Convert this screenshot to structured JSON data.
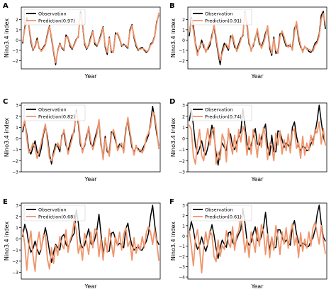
{
  "chart_data": [
    {
      "panel": "A",
      "type": "line",
      "xlabel": "Year",
      "ylabel": "Nino3.4 index",
      "yticks": [
        -2,
        -1,
        0,
        1,
        2
      ],
      "ylim": [
        -2.8,
        3.2
      ],
      "series": [
        {
          "name": "Observation",
          "color": "#000000",
          "values": [
            -0.3,
            1.2,
            2.2,
            1.4,
            -0.2,
            -1.0,
            -0.6,
            0.2,
            -0.8,
            -1.0,
            -0.7,
            -0.4,
            0.6,
            1.4,
            0.1,
            -1.2,
            -2.4,
            -1.0,
            -0.3,
            -0.8,
            -1.0,
            0.5,
            0.2,
            -0.6,
            -0.9,
            -0.4,
            0.1,
            0.3,
            2.8,
            1.5,
            -0.4,
            -0.9,
            -0.5,
            0.3,
            0.9,
            -0.4,
            -0.6,
            -0.1,
            0.6,
            1.3,
            -0.7,
            -1.4,
            0.3,
            -1.2,
            -1.1,
            0.7,
            0.6,
            0.1,
            -0.6,
            -0.4,
            -0.6,
            -0.8,
            1.0,
            1.5,
            0.2,
            -0.6,
            -1.0,
            -0.8,
            -0.7,
            -1.0,
            -1.2,
            -1.0,
            -0.4,
            -0.2,
            0.4,
            1.8,
            2.4
          ]
        },
        {
          "name": "Prediction(0.97)",
          "color": "#f0956c",
          "values": [
            -0.1,
            1.0,
            1.9,
            1.5,
            0.1,
            -0.9,
            -0.7,
            0.0,
            -0.7,
            -1.1,
            -0.8,
            -0.5,
            0.4,
            1.3,
            0.3,
            -1.0,
            -2.2,
            -1.1,
            -0.4,
            -0.7,
            -0.9,
            0.3,
            0.3,
            -0.4,
            -0.8,
            -0.5,
            0.0,
            0.4,
            2.5,
            1.7,
            -0.2,
            -0.8,
            -0.6,
            0.1,
            0.8,
            -0.2,
            -0.5,
            -0.2,
            0.4,
            1.2,
            -0.5,
            -1.2,
            0.2,
            -1.0,
            -1.2,
            0.5,
            0.7,
            0.2,
            -0.5,
            -0.5,
            -0.5,
            -0.7,
            0.8,
            1.4,
            0.4,
            -0.4,
            -0.9,
            -0.9,
            -0.8,
            -0.9,
            -1.1,
            -1.0,
            -0.5,
            -0.3,
            0.3,
            1.6,
            2.6
          ]
        }
      ]
    },
    {
      "panel": "B",
      "type": "line",
      "xlabel": "Year",
      "ylabel": "Nino3.4 index",
      "yticks": [
        -2,
        -1,
        0,
        1,
        2
      ],
      "ylim": [
        -2.8,
        3.2
      ],
      "series": [
        {
          "name": "Observation",
          "color": "#000000",
          "values": [
            0.4,
            2.2,
            1.4,
            -0.3,
            -1.2,
            -0.8,
            0.0,
            -0.7,
            -1.0,
            -0.9,
            -0.5,
            0.5,
            1.3,
            0.0,
            -1.3,
            -2.4,
            -1.0,
            -0.3,
            -0.6,
            -1.0,
            0.4,
            0.3,
            -0.7,
            -0.9,
            -0.4,
            0.2,
            0.4,
            2.8,
            1.4,
            -0.4,
            -0.9,
            -0.6,
            0.2,
            0.9,
            -0.4,
            -0.6,
            -0.1,
            0.7,
            1.2,
            -0.8,
            -1.5,
            0.3,
            -1.3,
            -1.1,
            0.6,
            0.7,
            0.0,
            -0.6,
            -0.5,
            -0.6,
            -0.8,
            1.1,
            1.6,
            0.1,
            -0.7,
            -1.0,
            -0.7,
            -0.8,
            -1.1,
            -1.2,
            -0.9,
            -0.3,
            -0.1,
            0.6,
            2.4,
            2.8,
            1.1
          ]
        },
        {
          "name": "Prediction(0.91)",
          "color": "#f0956c",
          "values": [
            0.8,
            2.0,
            1.0,
            -0.5,
            -1.5,
            -0.6,
            -0.3,
            -0.4,
            -1.2,
            -0.7,
            -0.2,
            0.2,
            1.5,
            0.3,
            -1.0,
            -2.0,
            -1.3,
            -0.6,
            -0.4,
            -0.8,
            0.1,
            0.5,
            -0.4,
            -1.1,
            -0.6,
            0.0,
            0.6,
            2.6,
            1.7,
            -0.1,
            -1.1,
            -0.4,
            0.0,
            1.1,
            -0.1,
            -0.8,
            -0.3,
            0.4,
            1.4,
            -0.5,
            -1.3,
            0.1,
            -1.0,
            -1.3,
            0.3,
            0.9,
            0.3,
            -0.4,
            -0.7,
            -0.4,
            -1.0,
            0.7,
            1.8,
            0.4,
            -0.5,
            -1.2,
            -0.6,
            -0.9,
            -0.9,
            -1.0,
            -1.1,
            -0.5,
            -0.3,
            0.4,
            2.0,
            2.6,
            1.6
          ]
        }
      ]
    },
    {
      "panel": "C",
      "type": "line",
      "xlabel": "Year",
      "ylabel": "Nino3.4 index",
      "yticks": [
        -3,
        -2,
        -1,
        0,
        1,
        2,
        3
      ],
      "ylim": [
        -3.0,
        3.2
      ],
      "series": [
        {
          "name": "Observation",
          "color": "#000000",
          "values": [
            0.6,
            1.5,
            0.4,
            -1.0,
            -1.4,
            -0.8,
            -0.2,
            -1.2,
            -1.6,
            -0.9,
            0.3,
            1.1,
            0.2,
            -1.4,
            -2.3,
            -1.2,
            -0.5,
            -0.7,
            -1.2,
            0.3,
            0.5,
            -0.6,
            -1.1,
            -0.4,
            0.3,
            0.6,
            2.6,
            1.3,
            -0.6,
            -1.0,
            -0.7,
            0.3,
            0.8,
            -0.5,
            -0.7,
            0.0,
            0.7,
            1.5,
            -0.6,
            -1.6,
            0.2,
            -1.2,
            -1.3,
            0.6,
            0.5,
            -0.2,
            -0.9,
            -0.5,
            -0.7,
            -1.0,
            0.9,
            1.6,
            0.3,
            -0.8,
            -1.2,
            -0.8,
            -0.9,
            -1.2,
            -1.0,
            -0.6,
            -0.2,
            0.3,
            1.4,
            2.9,
            1.8,
            0.4,
            -0.6
          ]
        },
        {
          "name": "Prediction(0.82)",
          "color": "#f0956c",
          "values": [
            0.9,
            1.7,
            0.0,
            -1.3,
            -1.0,
            -0.4,
            -0.9,
            -1.8,
            -1.1,
            -0.4,
            0.5,
            1.3,
            -0.2,
            -1.8,
            -2.0,
            -1.5,
            -0.8,
            -0.4,
            -0.9,
            0.1,
            0.8,
            -0.3,
            -1.4,
            -0.7,
            0.0,
            0.9,
            2.3,
            1.6,
            -0.2,
            -1.3,
            -0.5,
            0.0,
            1.1,
            -0.2,
            -1.0,
            -0.3,
            0.4,
            1.7,
            -0.3,
            -1.9,
            0.0,
            -0.9,
            -1.6,
            0.3,
            0.8,
            0.1,
            -1.1,
            -0.7,
            -0.4,
            -1.3,
            0.6,
            1.9,
            0.6,
            -0.5,
            -1.5,
            -0.6,
            -1.1,
            -1.0,
            -1.3,
            -0.8,
            0.1,
            0.5,
            1.1,
            2.4,
            2.1,
            0.8,
            -0.9
          ]
        }
      ]
    },
    {
      "panel": "D",
      "type": "line",
      "xlabel": "Year",
      "ylabel": "Nino3.4 index",
      "yticks": [
        -3,
        -2,
        -1,
        0,
        1,
        2,
        3
      ],
      "ylim": [
        -3.0,
        3.2
      ],
      "series": [
        {
          "name": "Observation",
          "color": "#000000",
          "values": [
            1.6,
            2.6,
            1.2,
            -0.6,
            -1.4,
            -0.9,
            -0.2,
            -1.1,
            -1.5,
            -0.8,
            0.2,
            1.2,
            0.3,
            -1.3,
            -2.4,
            -1.1,
            -0.4,
            -0.8,
            -1.1,
            0.4,
            0.4,
            -0.7,
            -1.0,
            -0.3,
            0.2,
            0.6,
            2.7,
            1.2,
            -0.5,
            -1.0,
            -0.6,
            0.2,
            0.9,
            -0.5,
            -0.6,
            0.1,
            0.7,
            1.3,
            -0.7,
            -1.5,
            0.3,
            -1.2,
            -1.2,
            0.7,
            0.6,
            -0.1,
            -0.8,
            -0.4,
            -0.6,
            -0.9,
            1.0,
            1.5,
            0.2,
            -0.7,
            -1.1,
            -0.7,
            -0.8,
            -1.1,
            -1.0,
            -0.5,
            -0.1,
            0.5,
            1.6,
            3.0,
            1.5,
            0.2,
            -0.5
          ]
        },
        {
          "name": "Prediction(0.74)",
          "color": "#f0956c",
          "values": [
            1.2,
            0.8,
            -1.6,
            -2.3,
            -0.4,
            0.8,
            -1.5,
            -2.0,
            -0.2,
            0.9,
            -0.6,
            0.6,
            1.0,
            -2.3,
            -1.2,
            -1.9,
            0.4,
            -0.2,
            -2.1,
            0.9,
            -0.5,
            -1.4,
            0.3,
            -1.2,
            0.8,
            -0.3,
            1.1,
            0.6,
            -1.5,
            0.2,
            -1.4,
            0.8,
            -0.2,
            -1.7,
            0.4,
            -0.8,
            1.0,
            0.2,
            -1.9,
            -0.4,
            -0.7,
            -2.0,
            0.5,
            -0.6,
            0.7,
            -1.4,
            -0.1,
            -1.1,
            0.4,
            -1.3,
            0.6,
            0.9,
            -0.9,
            -0.3,
            -1.8,
            0.2,
            -1.5,
            -0.4,
            -1.1,
            0.3,
            -0.6,
            0.8,
            0.5,
            1.5,
            -0.5,
            0.9,
            -0.6
          ]
        }
      ]
    },
    {
      "panel": "E",
      "type": "line",
      "xlabel": "Year",
      "ylabel": "Nino3.4 index",
      "yticks": [
        -3,
        -2,
        -1,
        0,
        1,
        2,
        3
      ],
      "ylim": [
        -3.6,
        3.2
      ],
      "series": [
        {
          "name": "Observation",
          "color": "#000000",
          "values": [
            0.2,
            1.3,
            0.7,
            -0.5,
            -1.2,
            -0.9,
            -0.2,
            -0.9,
            -1.4,
            -0.9,
            0.1,
            1.0,
            0.1,
            -1.1,
            -2.1,
            -1.2,
            -0.5,
            -0.8,
            -1.0,
            0.2,
            0.4,
            -0.5,
            -0.8,
            -0.3,
            0.2,
            0.5,
            2.6,
            1.4,
            -0.4,
            -0.8,
            -0.6,
            0.2,
            0.9,
            -0.4,
            -0.6,
            0.0,
            0.8,
            2.2,
            0.4,
            -1.3,
            -0.2,
            -1.1,
            -1.1,
            0.5,
            0.6,
            0.0,
            -0.6,
            -0.4,
            -0.6,
            -0.8,
            0.9,
            1.4,
            0.2,
            -0.6,
            -1.0,
            -0.8,
            -0.7,
            -1.0,
            -1.0,
            -0.6,
            -0.2,
            0.5,
            2.0,
            3.0,
            1.3,
            -0.1,
            -0.5
          ]
        },
        {
          "name": "Prediction(0.68)",
          "color": "#f0956c",
          "values": [
            0.8,
            -0.5,
            -2.8,
            -0.6,
            0.7,
            -1.5,
            -2.9,
            -0.4,
            0.6,
            -1.0,
            0.3,
            0.4,
            -1.8,
            -2.7,
            -0.8,
            -2.2,
            -0.6,
            -1.5,
            0.2,
            -0.5,
            -0.9,
            0.8,
            -1.2,
            -0.1,
            0.4,
            1.6,
            0.8,
            -1.3,
            -0.5,
            -1.9,
            0.5,
            -0.3,
            -1.4,
            0.6,
            -0.8,
            0.9,
            0.7,
            -1.6,
            0.0,
            -1.9,
            0.1,
            -1.2,
            0.9,
            -0.4,
            -1.6,
            0.2,
            -0.6,
            0.6,
            -1.0,
            0.4,
            1.0,
            -0.7,
            -0.2,
            -1.9,
            0.1,
            -1.3,
            -0.5,
            -1.0,
            0.2,
            -0.8,
            0.6,
            1.1,
            0.6,
            -0.5,
            0.8,
            -0.3,
            -1.9
          ]
        }
      ]
    },
    {
      "panel": "F",
      "type": "line",
      "xlabel": "Year",
      "ylabel": "Nino3.4 index",
      "yticks": [
        -4,
        -3,
        -2,
        -1,
        0,
        1,
        2,
        3
      ],
      "ylim": [
        -4.2,
        3.2
      ],
      "series": [
        {
          "name": "Observation",
          "color": "#000000",
          "values": [
            0.3,
            1.4,
            0.6,
            -0.6,
            -1.3,
            -0.9,
            -0.1,
            -0.9,
            -1.5,
            -0.8,
            0.2,
            1.1,
            0.1,
            -1.2,
            -2.2,
            -1.1,
            -0.4,
            -0.8,
            -1.1,
            0.3,
            0.4,
            -0.6,
            -0.9,
            -0.3,
            0.2,
            0.6,
            2.7,
            1.3,
            -0.5,
            -0.9,
            -0.6,
            0.3,
            0.9,
            -0.4,
            -0.6,
            0.0,
            0.8,
            2.3,
            0.3,
            -1.4,
            -0.1,
            -1.2,
            -1.1,
            0.6,
            0.6,
            -0.1,
            -0.7,
            -0.4,
            -0.6,
            -0.9,
            0.9,
            1.5,
            0.2,
            -0.6,
            -1.0,
            -0.7,
            -0.8,
            -1.1,
            -1.0,
            -0.5,
            -0.2,
            0.6,
            2.1,
            3.0,
            1.2,
            -0.1,
            -0.5
          ]
        },
        {
          "name": "Prediction(0.61)",
          "color": "#f0956c",
          "values": [
            0.5,
            -1.0,
            -2.9,
            -0.3,
            0.6,
            -1.2,
            -3.6,
            -1.0,
            0.4,
            -0.9,
            0.5,
            0.1,
            -2.0,
            -2.5,
            -0.4,
            -2.0,
            -0.9,
            -1.3,
            0.5,
            -0.7,
            -1.1,
            0.9,
            -1.4,
            0.1,
            0.5,
            1.9,
            0.5,
            -1.6,
            -0.3,
            -2.1,
            0.4,
            -0.5,
            -1.6,
            0.8,
            -1.0,
            1.1,
            0.4,
            -1.8,
            0.2,
            -2.1,
            -0.1,
            -1.4,
            1.0,
            -0.2,
            -1.8,
            0.4,
            -0.8,
            0.8,
            -1.2,
            0.2,
            1.2,
            -0.9,
            0.0,
            -2.1,
            0.3,
            -1.5,
            -0.3,
            -1.2,
            0.4,
            -1.0,
            0.8,
            1.3,
            0.3,
            -0.8,
            1.0,
            -0.5,
            -1.7
          ]
        }
      ]
    }
  ]
}
